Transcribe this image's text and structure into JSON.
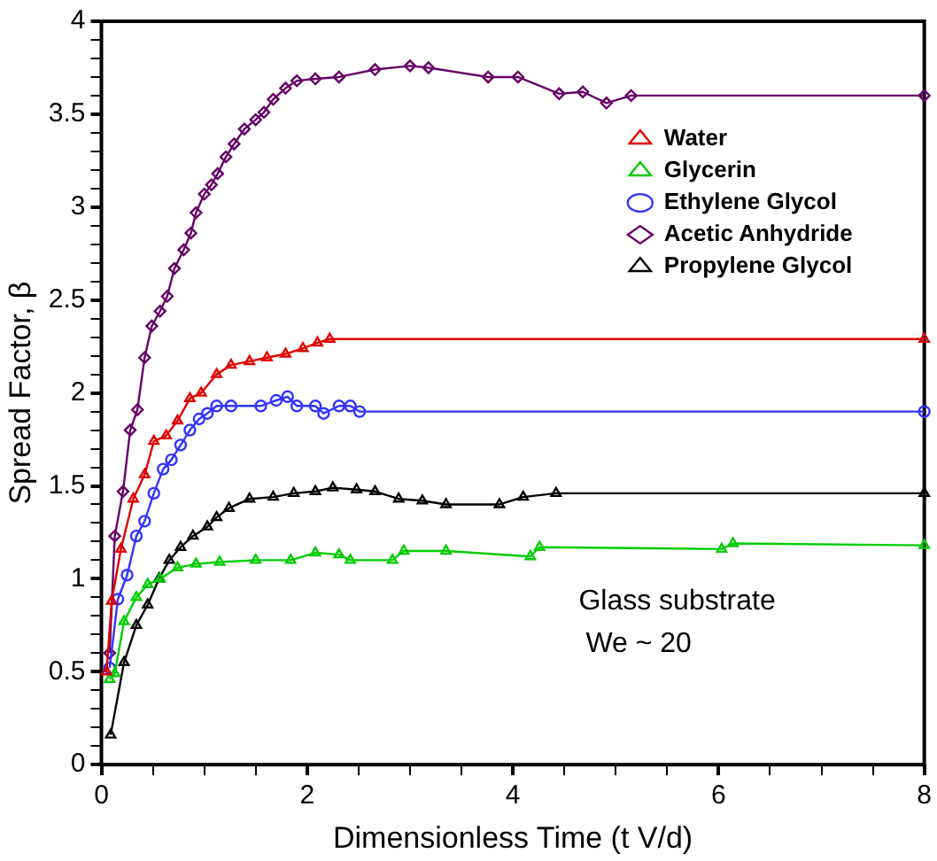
{
  "chart_data": {
    "type": "line",
    "xlabel": "Dimensionless Time (t V/d)",
    "ylabel": "Spread Factor, β",
    "xlim": [
      0,
      8
    ],
    "ylim": [
      0,
      4
    ],
    "xticks": [
      0,
      {
        "value": 0.5,
        "label": null
      },
      {
        "value": 1,
        "label": null
      },
      {
        "value": 1.5,
        "label": null
      },
      2,
      {
        "value": 2.5,
        "label": null
      },
      {
        "value": 3,
        "label": null
      },
      {
        "value": 3.5,
        "label": null
      },
      4,
      {
        "value": 4.5,
        "label": null
      },
      {
        "value": 5,
        "label": null
      },
      {
        "value": 5.5,
        "label": null
      },
      6,
      {
        "value": 6.5,
        "label": null
      },
      {
        "value": 7,
        "label": null
      },
      {
        "value": 7.5,
        "label": null
      },
      8
    ],
    "yticks": [
      0,
      {
        "value": 0.1,
        "label": null
      },
      {
        "value": 0.2,
        "label": null
      },
      {
        "value": 0.3,
        "label": null
      },
      {
        "value": 0.4,
        "label": null
      },
      0.5,
      {
        "value": 0.6,
        "label": null
      },
      {
        "value": 0.7,
        "label": null
      },
      {
        "value": 0.8,
        "label": null
      },
      {
        "value": 0.9,
        "label": null
      },
      1,
      {
        "value": 1.1,
        "label": null
      },
      {
        "value": 1.2,
        "label": null
      },
      {
        "value": 1.3,
        "label": null
      },
      {
        "value": 1.4,
        "label": null
      },
      1.5,
      {
        "value": 1.6,
        "label": null
      },
      {
        "value": 1.7,
        "label": null
      },
      {
        "value": 1.8,
        "label": null
      },
      {
        "value": 1.9,
        "label": null
      },
      2,
      {
        "value": 2.1,
        "label": null
      },
      {
        "value": 2.2,
        "label": null
      },
      {
        "value": 2.3,
        "label": null
      },
      {
        "value": 2.4,
        "label": null
      },
      2.5,
      {
        "value": 2.6,
        "label": null
      },
      {
        "value": 2.7,
        "label": null
      },
      {
        "value": 2.8,
        "label": null
      },
      {
        "value": 2.9,
        "label": null
      },
      3,
      {
        "value": 3.1,
        "label": null
      },
      {
        "value": 3.2,
        "label": null
      },
      {
        "value": 3.3,
        "label": null
      },
      {
        "value": 3.4,
        "label": null
      },
      3.5,
      {
        "value": 3.6,
        "label": null
      },
      {
        "value": 3.7,
        "label": null
      },
      {
        "value": 3.8,
        "label": null
      },
      {
        "value": 3.9,
        "label": null
      },
      4
    ],
    "grid": false,
    "legend": "top right",
    "marker": "triangle",
    "line_style": "solid",
    "annotations": [
      "Glass substrate",
      "We ~ 20"
    ],
    "series": [
      {
        "name": "Water",
        "color": "#e00000",
        "x": [
          0.05,
          0.1,
          0.19,
          0.31,
          0.42,
          0.51,
          0.63,
          0.74,
          0.86,
          0.97,
          1.12,
          1.26,
          1.44,
          1.61,
          1.79,
          1.96,
          2.1,
          2.22,
          8
        ],
        "values": [
          0.5,
          0.88,
          1.16,
          1.43,
          1.56,
          1.74,
          1.77,
          1.85,
          1.97,
          2.0,
          2.1,
          2.15,
          2.17,
          2.19,
          2.21,
          2.24,
          2.27,
          2.29,
          2.29
        ]
      },
      {
        "name": "Glycerin",
        "color": "#00cc00",
        "x": [
          0.08,
          0.13,
          0.22,
          0.34,
          0.45,
          0.57,
          0.74,
          0.92,
          1.15,
          1.5,
          1.84,
          2.08,
          2.31,
          2.42,
          2.83,
          2.94,
          3.35,
          4.17,
          4.26,
          6.03,
          6.14,
          8
        ],
        "values": [
          0.46,
          0.49,
          0.77,
          0.9,
          0.97,
          1.0,
          1.06,
          1.08,
          1.09,
          1.1,
          1.1,
          1.14,
          1.13,
          1.1,
          1.1,
          1.15,
          1.15,
          1.12,
          1.17,
          1.16,
          1.19,
          1.18
        ]
      },
      {
        "name": "Ethylene Glycol",
        "color": "#3333ff",
        "marker": "circle",
        "x": [
          0.08,
          0.16,
          0.25,
          0.34,
          0.42,
          0.51,
          0.6,
          0.68,
          0.77,
          0.86,
          0.95,
          1.03,
          1.12,
          1.26,
          1.55,
          1.7,
          1.81,
          1.9,
          2.08,
          2.16,
          2.31,
          2.42,
          2.51,
          8
        ],
        "values": [
          0.52,
          0.89,
          1.02,
          1.23,
          1.31,
          1.46,
          1.59,
          1.64,
          1.72,
          1.8,
          1.86,
          1.89,
          1.93,
          1.93,
          1.93,
          1.96,
          1.98,
          1.93,
          1.93,
          1.89,
          1.93,
          1.93,
          1.9,
          1.9
        ]
      },
      {
        "name": "Acetic Anhydride",
        "color": "#660066",
        "marker": "diamond",
        "x": [
          0.08,
          0.13,
          0.21,
          0.28,
          0.35,
          0.42,
          0.49,
          0.57,
          0.64,
          0.71,
          0.8,
          0.87,
          0.92,
          1.0,
          1.07,
          1.13,
          1.21,
          1.29,
          1.39,
          1.5,
          1.58,
          1.67,
          1.79,
          1.9,
          2.08,
          2.31,
          2.66,
          3.0,
          3.18,
          3.76,
          4.05,
          4.45,
          4.68,
          4.91,
          5.15,
          8
        ],
        "values": [
          0.6,
          1.23,
          1.47,
          1.8,
          1.91,
          2.19,
          2.36,
          2.44,
          2.52,
          2.67,
          2.77,
          2.86,
          2.97,
          3.07,
          3.12,
          3.18,
          3.27,
          3.34,
          3.42,
          3.47,
          3.51,
          3.58,
          3.64,
          3.68,
          3.69,
          3.7,
          3.74,
          3.76,
          3.75,
          3.7,
          3.7,
          3.61,
          3.62,
          3.56,
          3.6,
          3.6
        ]
      },
      {
        "name": "Propylene Glycol",
        "color": "#000000",
        "x": [
          0.09,
          0.22,
          0.34,
          0.45,
          0.56,
          0.66,
          0.77,
          0.89,
          1.03,
          1.12,
          1.24,
          1.44,
          1.67,
          1.87,
          2.08,
          2.25,
          2.48,
          2.66,
          2.89,
          3.12,
          3.35,
          3.87,
          4.1,
          4.42,
          8
        ],
        "values": [
          0.16,
          0.55,
          0.75,
          0.86,
          1.0,
          1.1,
          1.17,
          1.23,
          1.28,
          1.33,
          1.38,
          1.43,
          1.44,
          1.46,
          1.47,
          1.49,
          1.48,
          1.47,
          1.43,
          1.42,
          1.4,
          1.4,
          1.44,
          1.46,
          1.46
        ]
      }
    ]
  }
}
